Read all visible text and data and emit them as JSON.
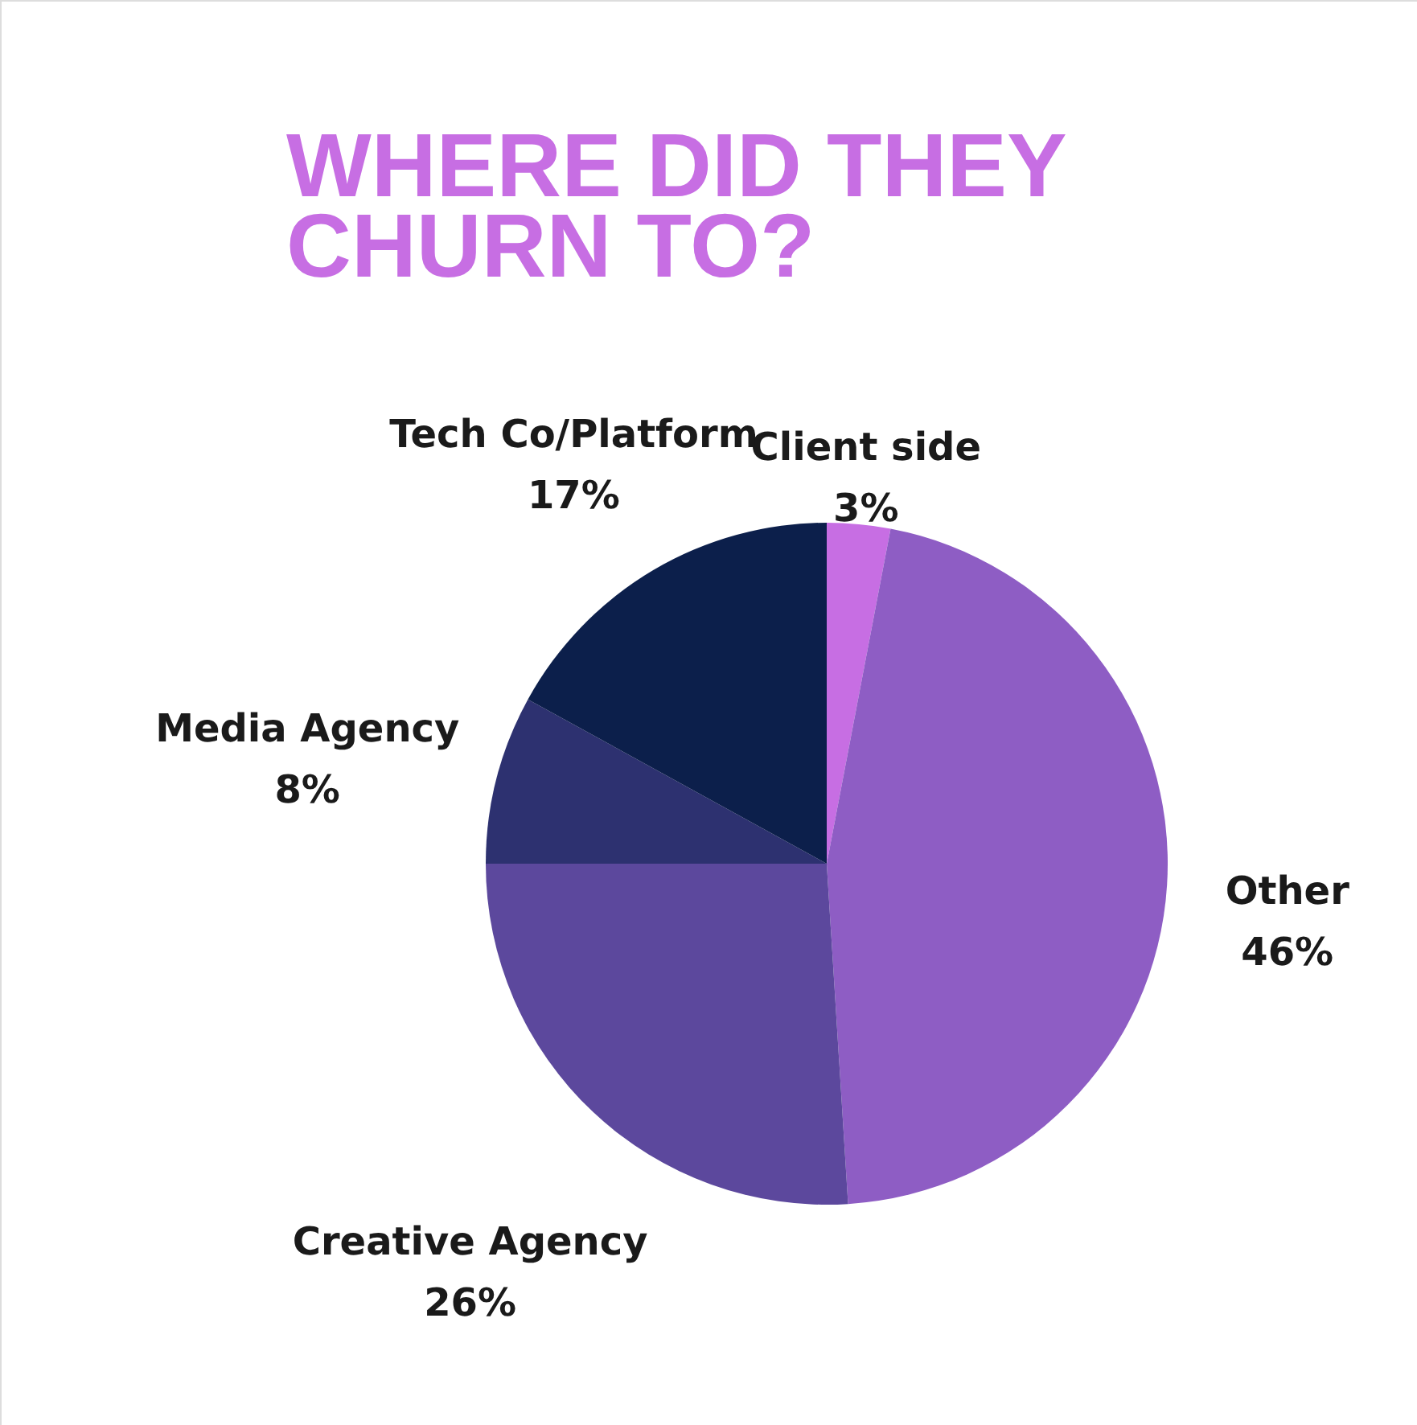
{
  "chart_data": {
    "type": "pie",
    "title": "WHERE DID THEY\nCHURN TO?",
    "categories": [
      "Client side",
      "Other",
      "Creative Agency",
      "Media Agency",
      "Tech Co/Platform"
    ],
    "values": [
      3,
      46,
      26,
      8,
      17
    ],
    "value_labels": [
      "3%",
      "46%",
      "26%",
      "8%",
      "17%"
    ],
    "colors": [
      "#c76ee3",
      "#8e5dc4",
      "#5c489d",
      "#2d3170",
      "#0c1f4b"
    ]
  }
}
